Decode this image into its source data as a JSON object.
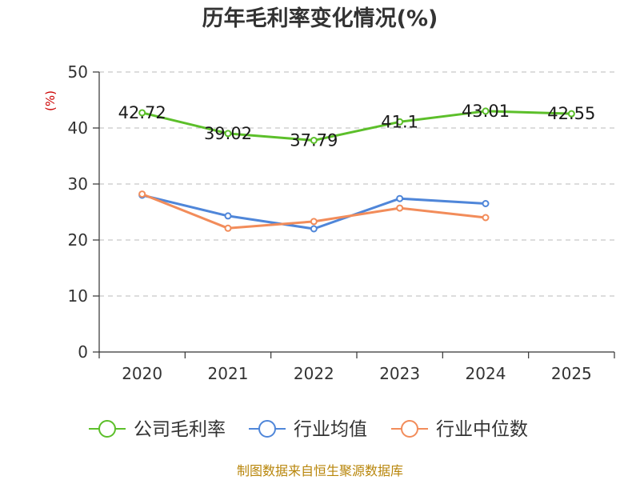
{
  "chart_data": {
    "type": "line",
    "title": "历年毛利率变化情况(%)",
    "xlabel": "",
    "ylabel": "(%)",
    "categories": [
      "2020",
      "2021",
      "2022",
      "2023",
      "2024",
      "2025"
    ],
    "ylim": [
      0,
      50
    ],
    "yticks": [
      0,
      10,
      20,
      30,
      40,
      50
    ],
    "grid": true,
    "legend_position": "bottom",
    "series": [
      {
        "name": "公司毛利率",
        "color": "#5cbf2a",
        "values": [
          42.72,
          39.02,
          37.79,
          41.1,
          43.01,
          42.55
        ],
        "labels": [
          "42.72",
          "39.02",
          "37.79",
          "41.1",
          "43.01",
          "42.55"
        ]
      },
      {
        "name": "行业均值",
        "color": "#4f86d9",
        "values": [
          28.0,
          24.3,
          22.0,
          27.4,
          26.5,
          null
        ]
      },
      {
        "name": "行业中位数",
        "color": "#f28c5a",
        "values": [
          28.2,
          22.1,
          23.3,
          25.7,
          24.0,
          null
        ]
      }
    ],
    "source": "制图数据来自恒生聚源数据库"
  }
}
